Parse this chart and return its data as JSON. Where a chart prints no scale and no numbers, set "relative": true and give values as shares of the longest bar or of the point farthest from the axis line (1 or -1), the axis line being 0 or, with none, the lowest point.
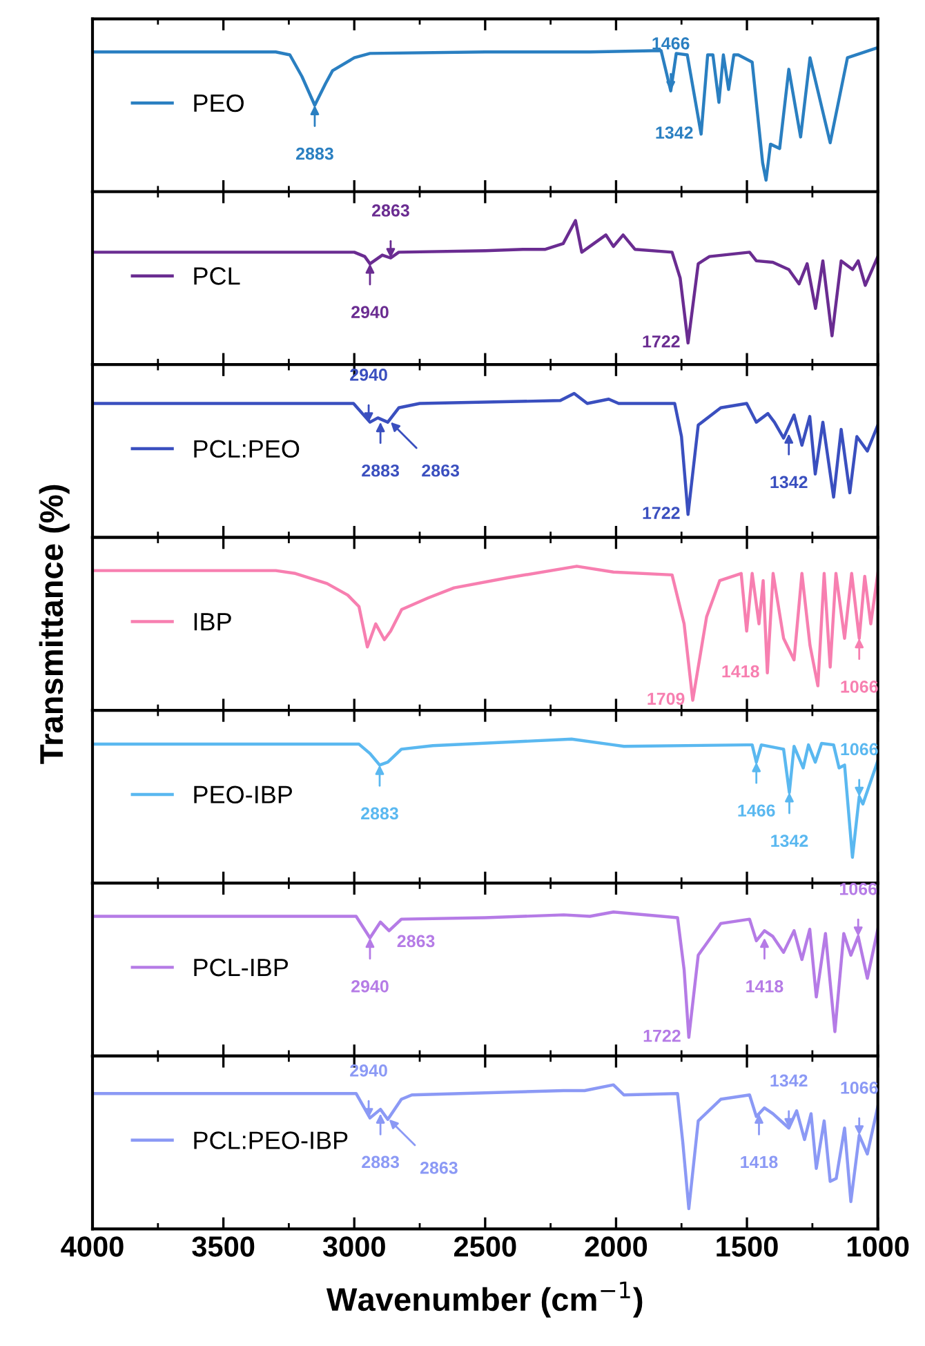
{
  "chart_data": [
    {
      "type": "line",
      "relative": true,
      "xlim": [
        4000,
        1000
      ],
      "xticks": [
        4000,
        {
          "value": 3750,
          "label": null
        },
        3500,
        {
          "value": 3250,
          "label": null
        },
        3000,
        {
          "value": 2750,
          "label": null
        },
        2500,
        {
          "value": 2250,
          "label": null
        },
        2000,
        {
          "value": 1750,
          "label": null
        },
        1500,
        {
          "value": 1250,
          "label": null
        },
        1000
      ],
      "tick_labels": false,
      "legend": "left",
      "grid": false,
      "series": [
        {
          "name": "PEO",
          "color": "#2a7fc1",
          "x": [
            4000,
            3500,
            3300,
            3246,
            3200,
            3151,
            3110,
            3083,
            3000,
            2940,
            2500,
            2100,
            1828,
            1791,
            1770,
            1728,
            1675,
            1650,
            1630,
            1607,
            1590,
            1570,
            1550,
            1533,
            1480,
            1440,
            1427,
            1410,
            1375,
            1340,
            1295,
            1259,
            1182,
            1116,
            1000
          ],
          "values": [
            0.97,
            0.97,
            0.97,
            0.95,
            0.8,
            0.6,
            0.75,
            0.84,
            0.93,
            0.96,
            0.97,
            0.97,
            0.98,
            0.7,
            0.96,
            0.95,
            0.4,
            0.95,
            0.95,
            0.62,
            0.95,
            0.71,
            0.95,
            0.95,
            0.9,
            0.2,
            0.08,
            0.33,
            0.3,
            0.85,
            0.38,
            0.93,
            0.34,
            0.93,
            1.0
          ]
        }
      ],
      "annotations": [
        {
          "text": "2883",
          "x": 3151,
          "y": 0.6
        },
        {
          "text": "1466",
          "x": 1791,
          "y": 0.7
        },
        {
          "text": "1342",
          "x": 1675,
          "y": 0.4
        }
      ]
    },
    {
      "type": "line",
      "relative": true,
      "xlim": [
        4000,
        1000
      ],
      "xticks": [
        4000,
        {
          "value": 3750,
          "label": null
        },
        3500,
        {
          "value": 3250,
          "label": null
        },
        3000,
        {
          "value": 2750,
          "label": null
        },
        2500,
        {
          "value": 2250,
          "label": null
        },
        2000,
        {
          "value": 1750,
          "label": null
        },
        1500,
        {
          "value": 1250,
          "label": null
        },
        1000
      ],
      "tick_labels": false,
      "legend": "left",
      "grid": false,
      "series": [
        {
          "name": "PCL",
          "color": "#6a2c91",
          "x": [
            4000,
            3500,
            3000,
            2960,
            2940,
            2893,
            2861,
            2830,
            2500,
            2356,
            2270,
            2202,
            2155,
            2131,
            2039,
            2010,
            1973,
            1928,
            1786,
            1755,
            1725,
            1686,
            1643,
            1490,
            1464,
            1401,
            1340,
            1301,
            1270,
            1238,
            1210,
            1175,
            1140,
            1096,
            1075,
            1048,
            1000
          ],
          "values": [
            0.78,
            0.78,
            0.78,
            0.75,
            0.7,
            0.76,
            0.74,
            0.78,
            0.79,
            0.8,
            0.8,
            0.84,
            1.0,
            0.78,
            0.9,
            0.82,
            0.9,
            0.8,
            0.78,
            0.6,
            0.15,
            0.7,
            0.75,
            0.78,
            0.72,
            0.71,
            0.66,
            0.56,
            0.7,
            0.39,
            0.72,
            0.2,
            0.72,
            0.66,
            0.72,
            0.55,
            0.75
          ]
        }
      ],
      "annotations": [
        {
          "text": "2940",
          "x": 2940,
          "y": 0.7
        },
        {
          "text": "2863",
          "x": 2861,
          "y": 0.74
        },
        {
          "text": "1722",
          "x": 1725,
          "y": 0.15
        }
      ]
    },
    {
      "type": "line",
      "relative": true,
      "xlim": [
        4000,
        1000
      ],
      "xticks": [
        4000,
        {
          "value": 3750,
          "label": null
        },
        3500,
        {
          "value": 3250,
          "label": null
        },
        3000,
        {
          "value": 2750,
          "label": null
        },
        2500,
        {
          "value": 2250,
          "label": null
        },
        2000,
        {
          "value": 1750,
          "label": null
        },
        1500,
        {
          "value": 1250,
          "label": null
        },
        1000
      ],
      "tick_labels": false,
      "legend": "left",
      "grid": false,
      "series": [
        {
          "name": "PCL:PEO",
          "color": "#3a4fbf",
          "x": [
            4000,
            3500,
            3003,
            2940,
            2910,
            2872,
            2830,
            2750,
            2213,
            2160,
            2110,
            2028,
            1990,
            1776,
            1750,
            1725,
            1686,
            1600,
            1501,
            1464,
            1420,
            1395,
            1360,
            1320,
            1290,
            1260,
            1239,
            1210,
            1169,
            1140,
            1107,
            1080,
            1040,
            1000
          ],
          "values": [
            0.93,
            0.93,
            0.93,
            0.8,
            0.83,
            0.8,
            0.9,
            0.93,
            0.95,
            1.0,
            0.93,
            0.96,
            0.93,
            0.93,
            0.7,
            0.16,
            0.78,
            0.9,
            0.93,
            0.8,
            0.86,
            0.8,
            0.69,
            0.85,
            0.64,
            0.84,
            0.44,
            0.8,
            0.28,
            0.75,
            0.31,
            0.7,
            0.6,
            0.78
          ]
        }
      ],
      "annotations": [
        {
          "text": "2883",
          "x": 2900,
          "y": 0.8
        },
        {
          "text": "2940",
          "x": 2945,
          "y": 0.8
        },
        {
          "text": "2863",
          "x": 2861,
          "y": 0.8
        },
        {
          "text": "1342",
          "x": 1340,
          "y": 0.72
        },
        {
          "text": "1722",
          "x": 1725,
          "y": 0.16
        }
      ]
    },
    {
      "type": "line",
      "relative": true,
      "xlim": [
        4000,
        1000
      ],
      "xticks": [
        4000,
        {
          "value": 3750,
          "label": null
        },
        3500,
        {
          "value": 3250,
          "label": null
        },
        3000,
        {
          "value": 2750,
          "label": null
        },
        2500,
        {
          "value": 2250,
          "label": null
        },
        2000,
        {
          "value": 1750,
          "label": null
        },
        1500,
        {
          "value": 1250,
          "label": null
        },
        1000
      ],
      "tick_labels": false,
      "legend": "left",
      "grid": false,
      "ylabel": "Transmittance (%)",
      "series": [
        {
          "name": "IBP",
          "color": "#f77fb0",
          "x": [
            4000,
            3500,
            3300,
            3225,
            3104,
            3025,
            2982,
            2950,
            2918,
            2885,
            2861,
            2819,
            2718,
            2619,
            2413,
            2150,
            2010,
            1786,
            1740,
            1707,
            1654,
            1604,
            1522,
            1501,
            1480,
            1454,
            1438,
            1422,
            1400,
            1360,
            1320,
            1290,
            1259,
            1229,
            1205,
            1182,
            1160,
            1127,
            1100,
            1071,
            1050,
            1027,
            1000
          ],
          "values": [
            0.97,
            0.97,
            0.97,
            0.95,
            0.88,
            0.8,
            0.72,
            0.44,
            0.6,
            0.49,
            0.55,
            0.7,
            0.78,
            0.85,
            0.92,
            1.0,
            0.96,
            0.94,
            0.6,
            0.07,
            0.65,
            0.9,
            0.95,
            0.55,
            0.95,
            0.6,
            0.9,
            0.26,
            0.95,
            0.5,
            0.35,
            0.95,
            0.45,
            0.17,
            0.95,
            0.3,
            0.95,
            0.5,
            0.95,
            0.5,
            0.93,
            0.6,
            0.95
          ]
        }
      ],
      "annotations": [
        {
          "text": "1709",
          "x": 1707,
          "y": 0.07
        },
        {
          "text": "1418",
          "x": 1422,
          "y": 0.26
        },
        {
          "text": "1066",
          "x": 1071,
          "y": 0.5
        }
      ]
    },
    {
      "type": "line",
      "relative": true,
      "xlim": [
        4000,
        1000
      ],
      "xticks": [
        4000,
        {
          "value": 3750,
          "label": null
        },
        3500,
        {
          "value": 3250,
          "label": null
        },
        3000,
        {
          "value": 2750,
          "label": null
        },
        2500,
        {
          "value": 2250,
          "label": null
        },
        2000,
        {
          "value": 1750,
          "label": null
        },
        1500,
        {
          "value": 1250,
          "label": null
        },
        1000
      ],
      "tick_labels": false,
      "legend": "left",
      "grid": false,
      "series": [
        {
          "name": "PEO-IBP",
          "color": "#5ab8f0",
          "x": [
            4000,
            3500,
            2982,
            2940,
            2903,
            2872,
            2820,
            2700,
            2170,
            2010,
            1970,
            1501,
            1480,
            1464,
            1445,
            1360,
            1338,
            1320,
            1285,
            1265,
            1239,
            1215,
            1169,
            1148,
            1127,
            1097,
            1071,
            1057,
            1000
          ],
          "values": [
            0.965,
            0.965,
            0.965,
            0.9,
            0.82,
            0.84,
            0.93,
            0.955,
            1.0,
            0.96,
            0.95,
            0.96,
            0.96,
            0.84,
            0.96,
            0.93,
            0.63,
            0.95,
            0.8,
            0.96,
            0.84,
            0.97,
            0.96,
            0.8,
            0.82,
            0.18,
            0.6,
            0.55,
            0.85
          ]
        }
      ],
      "annotations": [
        {
          "text": "2883",
          "x": 2903,
          "y": 0.82
        },
        {
          "text": "1466",
          "x": 1464,
          "y": 0.84
        },
        {
          "text": "1342",
          "x": 1338,
          "y": 0.63
        },
        {
          "text": "1066",
          "x": 1071,
          "y": 0.6
        }
      ]
    },
    {
      "type": "line",
      "relative": true,
      "xlim": [
        4000,
        1000
      ],
      "xticks": [
        4000,
        {
          "value": 3750,
          "label": null
        },
        3500,
        {
          "value": 3250,
          "label": null
        },
        3000,
        {
          "value": 2750,
          "label": null
        },
        2500,
        {
          "value": 2250,
          "label": null
        },
        2000,
        {
          "value": 1750,
          "label": null
        },
        1500,
        {
          "value": 1250,
          "label": null
        },
        1000
      ],
      "tick_labels": false,
      "legend": "left",
      "grid": false,
      "series": [
        {
          "name": "PCL-IBP",
          "color": "#b57be6",
          "x": [
            4000,
            3500,
            2993,
            2940,
            2900,
            2867,
            2820,
            2500,
            2200,
            2100,
            2010,
            1765,
            1740,
            1722,
            1686,
            1600,
            1490,
            1464,
            1433,
            1401,
            1360,
            1320,
            1290,
            1260,
            1235,
            1200,
            1164,
            1130,
            1103,
            1075,
            1040,
            1000
          ],
          "values": [
            0.97,
            0.97,
            0.97,
            0.82,
            0.93,
            0.87,
            0.95,
            0.96,
            0.98,
            0.97,
            1.0,
            0.96,
            0.6,
            0.13,
            0.7,
            0.92,
            0.95,
            0.8,
            0.87,
            0.83,
            0.72,
            0.87,
            0.67,
            0.88,
            0.41,
            0.85,
            0.17,
            0.85,
            0.7,
            0.83,
            0.54,
            0.88
          ]
        }
      ],
      "annotations": [
        {
          "text": "2940",
          "x": 2940,
          "y": 0.82
        },
        {
          "text": "2863",
          "x": 2867,
          "y": 0.87
        },
        {
          "text": "1722",
          "x": 1722,
          "y": 0.13
        },
        {
          "text": "1418",
          "x": 1433,
          "y": 0.82
        },
        {
          "text": "1066",
          "x": 1075,
          "y": 0.83
        }
      ]
    },
    {
      "type": "line",
      "relative": true,
      "xlim": [
        4000,
        1000
      ],
      "xticks": [
        4000,
        {
          "value": 3750,
          "label": null
        },
        3500,
        {
          "value": 3250,
          "label": null
        },
        3000,
        {
          "value": 2750,
          "label": null
        },
        2500,
        {
          "value": 2250,
          "label": null
        },
        2000,
        {
          "value": 1750,
          "label": null
        },
        1500,
        {
          "value": 1250,
          "label": null
        },
        1000
      ],
      "tick_labels": "x",
      "legend": "left",
      "grid": false,
      "xlabel": "Wavenumber (cm$^{−1}$)",
      "series": [
        {
          "name": "PCL:PEO-IBP",
          "color": "#8b99f5",
          "x": [
            4000,
            3500,
            2993,
            2940,
            2900,
            2872,
            2820,
            2780,
            2200,
            2120,
            2010,
            1970,
            1765,
            1745,
            1722,
            1686,
            1600,
            1490,
            1464,
            1433,
            1401,
            1340,
            1310,
            1280,
            1255,
            1235,
            1205,
            1182,
            1159,
            1127,
            1103,
            1071,
            1040,
            1000
          ],
          "values": [
            0.94,
            0.94,
            0.94,
            0.77,
            0.83,
            0.76,
            0.9,
            0.93,
            0.96,
            0.96,
            1.0,
            0.93,
            0.94,
            0.6,
            0.14,
            0.75,
            0.9,
            0.93,
            0.78,
            0.84,
            0.8,
            0.7,
            0.82,
            0.62,
            0.8,
            0.42,
            0.75,
            0.33,
            0.35,
            0.7,
            0.19,
            0.65,
            0.52,
            0.85
          ]
        }
      ],
      "annotations": [
        {
          "text": "2883",
          "x": 2900,
          "y": 0.8
        },
        {
          "text": "2940",
          "x": 2945,
          "y": 0.77
        },
        {
          "text": "2863",
          "x": 2867,
          "y": 0.76
        },
        {
          "text": "1418",
          "x": 1454,
          "y": 0.8
        },
        {
          "text": "1342",
          "x": 1340,
          "y": 0.7
        },
        {
          "text": "1066",
          "x": 1071,
          "y": 0.65
        }
      ]
    }
  ]
}
